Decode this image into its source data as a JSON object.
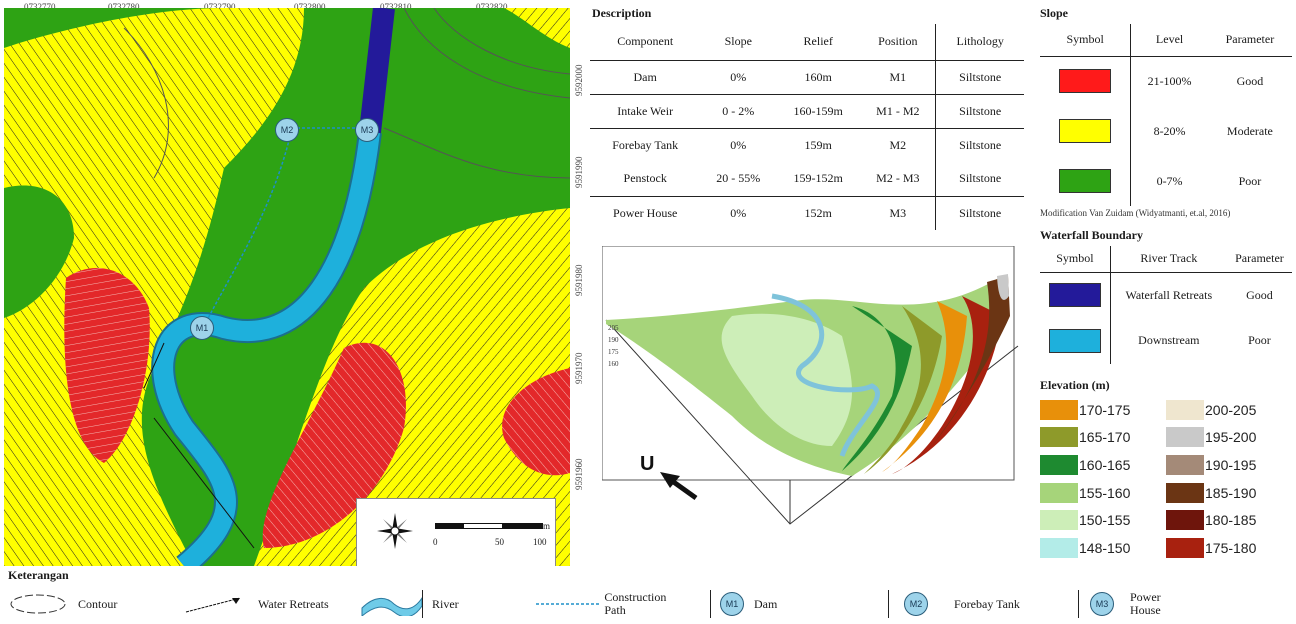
{
  "map": {
    "coords_top": [
      "0732770",
      "0732780",
      "0732790",
      "0732800",
      "0732810",
      "0732820"
    ],
    "coords_side": [
      "9592000",
      "9591990",
      "9591980",
      "9591970",
      "9591960"
    ],
    "markers": [
      {
        "id": "m2",
        "label": "M2"
      },
      {
        "id": "m3",
        "label": "M3"
      },
      {
        "id": "m1",
        "label": "M1"
      }
    ],
    "scalebar": {
      "ticks": [
        "0",
        "50",
        "100"
      ],
      "unit": "m"
    },
    "colors": {
      "good": "#ff1a1a",
      "moderate": "#ffff00",
      "poor": "#2ea314",
      "upstream": "#231a9a",
      "downstream": "#1eb0dc"
    }
  },
  "description": {
    "title": "Description",
    "headers": [
      "Component",
      "Slope",
      "Relief",
      "Position",
      "Lithology"
    ],
    "rows": [
      {
        "component": "Dam",
        "slope": "0%",
        "relief": "160m",
        "position": "M1",
        "lithology": "Siltstone"
      },
      {
        "component": "Intake Weir",
        "slope": "0 - 2%",
        "relief": "160-159m",
        "position": "M1 - M2",
        "lithology": "Siltstone"
      },
      {
        "component": "Forebay Tank",
        "slope": "0%",
        "relief": "159m",
        "position": "M2",
        "lithology": "Siltstone"
      },
      {
        "component": "Penstock",
        "slope": "20 - 55%",
        "relief": "159-152m",
        "position": "M2 - M3",
        "lithology": "Siltstone"
      },
      {
        "component": "Power House",
        "slope": "0%",
        "relief": "152m",
        "position": "M3",
        "lithology": "Siltstone"
      }
    ]
  },
  "slope": {
    "title": "Slope",
    "headers": [
      "Symbol",
      "Level",
      "Parameter"
    ],
    "rows": [
      {
        "color": "#ff1a1a",
        "level": "21-100%",
        "parameter": "Good"
      },
      {
        "color": "#ffff00",
        "level": "8-20%",
        "parameter": "Moderate"
      },
      {
        "color": "#2ea314",
        "level": "0-7%",
        "parameter": "Poor"
      }
    ],
    "note": "Modification Van Zuidam (Widyatmanti, et.al, 2016)"
  },
  "waterfall": {
    "title": "Waterfall Boundary",
    "headers": [
      "Symbol",
      "River Track",
      "Parameter"
    ],
    "rows": [
      {
        "color": "#231a9a",
        "track": "Waterfall Retreats",
        "parameter": "Good"
      },
      {
        "color": "#1eb0dc",
        "track": "Downstream",
        "parameter": "Poor"
      }
    ]
  },
  "elevation": {
    "title": "Elevation (m)",
    "items": [
      {
        "label": "170-175",
        "color": "#e8900a"
      },
      {
        "label": "200-205",
        "color": "#efe6cf"
      },
      {
        "label": "165-170",
        "color": "#8e9a2a"
      },
      {
        "label": "195-200",
        "color": "#c9c9c9"
      },
      {
        "label": "160-165",
        "color": "#1e8a30"
      },
      {
        "label": "190-195",
        "color": "#a48a78"
      },
      {
        "label": "155-160",
        "color": "#a6d47a"
      },
      {
        "label": "185-190",
        "color": "#6b3514"
      },
      {
        "label": "150-155",
        "color": "#cdeeb8"
      },
      {
        "label": "180-185",
        "color": "#6e150c"
      },
      {
        "label": "148-150",
        "color": "#b3ece8"
      },
      {
        "label": "175-180",
        "color": "#a8210f"
      }
    ]
  },
  "view3d": {
    "north_label": "U",
    "z_ticks": [
      "205",
      "190",
      "175",
      "160"
    ]
  },
  "bottom_legend": {
    "title": "Keterangan",
    "items": {
      "contour": "Contour",
      "water_retreats": "Water Retreats",
      "river": "River",
      "construction_path": "Construction Path",
      "dam": "Dam",
      "forebay": "Forebay Tank",
      "power_house": "Power House",
      "m1": "M1",
      "m2": "M2",
      "m3": "M3"
    }
  }
}
